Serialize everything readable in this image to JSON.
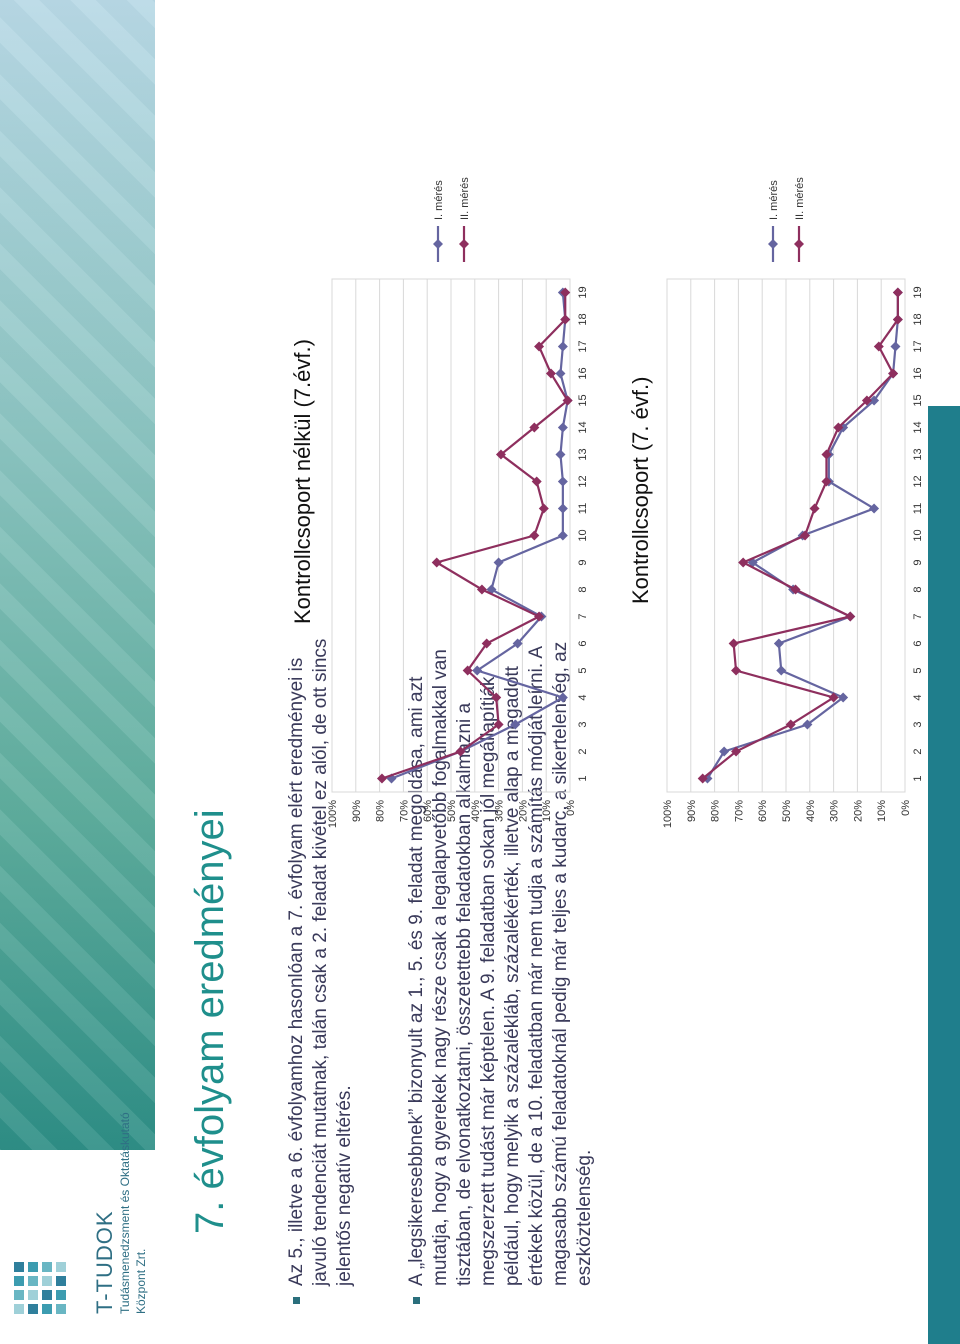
{
  "header": {
    "brand_name": "T-TUDOK",
    "brand_sub1": "Tudásmenedzsment és Oktatáskutató",
    "brand_sub2": "Központ Zrt.",
    "title": "7. évfolyam eredményei"
  },
  "bullets": [
    "Az 5., illetve a 6. évfolyamhoz hasonlóan a 7. évfolyam elért eredményei is javuló tendenciát mutatnak, talán csak a 2. feladat kivétel ez alól, de ott sincs jelentős negatív eltérés.",
    "A „legsikeresebbnek” bizonyult az 1., 5. és 9. feladat megoldása, ami azt mutatja, hogy a gyerekek nagy része csak a legalapvetőbb fogalmakkal van tisztában, de elvonatkoztatni, összetettebb feladatokban alkalmazni a megszerzett tudást már képtelen. A 9. feladatban sokan jól megállapítják például, hogy melyik a százalékláb, százalékérték, illetve alap a megadott értékek közül, de a 10. feladatban már nem tudja a számítás módját leírni. A magasabb számú feladatoknál pedig már teljes a kudarc, a sikertelenség, az eszköztelenség."
  ],
  "colors": {
    "series1": "#6565a0",
    "series2": "#8e2f5e",
    "accent": "#1f8f8c"
  },
  "chart_data": [
    {
      "type": "line",
      "title": "Kontrollcsoport nélkül (7.évf.)",
      "categories": [
        "1",
        "2",
        "3",
        "4",
        "5",
        "6",
        "7",
        "8",
        "9",
        "10",
        "11",
        "12",
        "13",
        "14",
        "15",
        "16",
        "17",
        "18",
        "19"
      ],
      "ylim": [
        0,
        1
      ],
      "y_ticks": [
        "0%",
        "10%",
        "20%",
        "30%",
        "40%",
        "50%",
        "60%",
        "70%",
        "80%",
        "90%",
        "100%"
      ],
      "legend_position": "right",
      "series": [
        {
          "name": "I. mérés",
          "values": [
            0.75,
            0.46,
            0.23,
            0.03,
            0.39,
            0.22,
            0.12,
            0.33,
            0.3,
            0.03,
            0.03,
            0.03,
            0.04,
            0.03,
            0.01,
            0.04,
            0.03,
            0.02,
            0.03
          ]
        },
        {
          "name": "II. mérés",
          "values": [
            0.79,
            0.46,
            0.3,
            0.31,
            0.43,
            0.35,
            0.13,
            0.37,
            0.56,
            0.15,
            0.11,
            0.14,
            0.29,
            0.15,
            0.01,
            0.08,
            0.13,
            0.02,
            0.02
          ]
        }
      ]
    },
    {
      "type": "line",
      "title": "Kontrollcsoport (7. évf.)",
      "categories": [
        "1",
        "2",
        "3",
        "4",
        "5",
        "6",
        "7",
        "8",
        "9",
        "10",
        "11",
        "12",
        "13",
        "14",
        "15",
        "16",
        "17",
        "18",
        "19"
      ],
      "ylim": [
        0,
        1
      ],
      "y_ticks": [
        "0%",
        "10%",
        "20%",
        "30%",
        "40%",
        "50%",
        "60%",
        "70%",
        "80%",
        "90%",
        "100%"
      ],
      "legend_position": "right",
      "series": [
        {
          "name": "I. mérés",
          "values": [
            0.83,
            0.76,
            0.41,
            0.26,
            0.52,
            0.53,
            0.23,
            0.47,
            0.64,
            0.43,
            0.13,
            0.32,
            0.32,
            0.26,
            0.13,
            0.05,
            0.04,
            0.03,
            0.03
          ]
        },
        {
          "name": "II. mérés",
          "values": [
            0.85,
            0.71,
            0.48,
            0.3,
            0.71,
            0.72,
            0.23,
            0.46,
            0.68,
            0.42,
            0.38,
            0.33,
            0.33,
            0.28,
            0.16,
            0.05,
            0.11,
            0.03,
            0.03
          ]
        }
      ]
    }
  ]
}
